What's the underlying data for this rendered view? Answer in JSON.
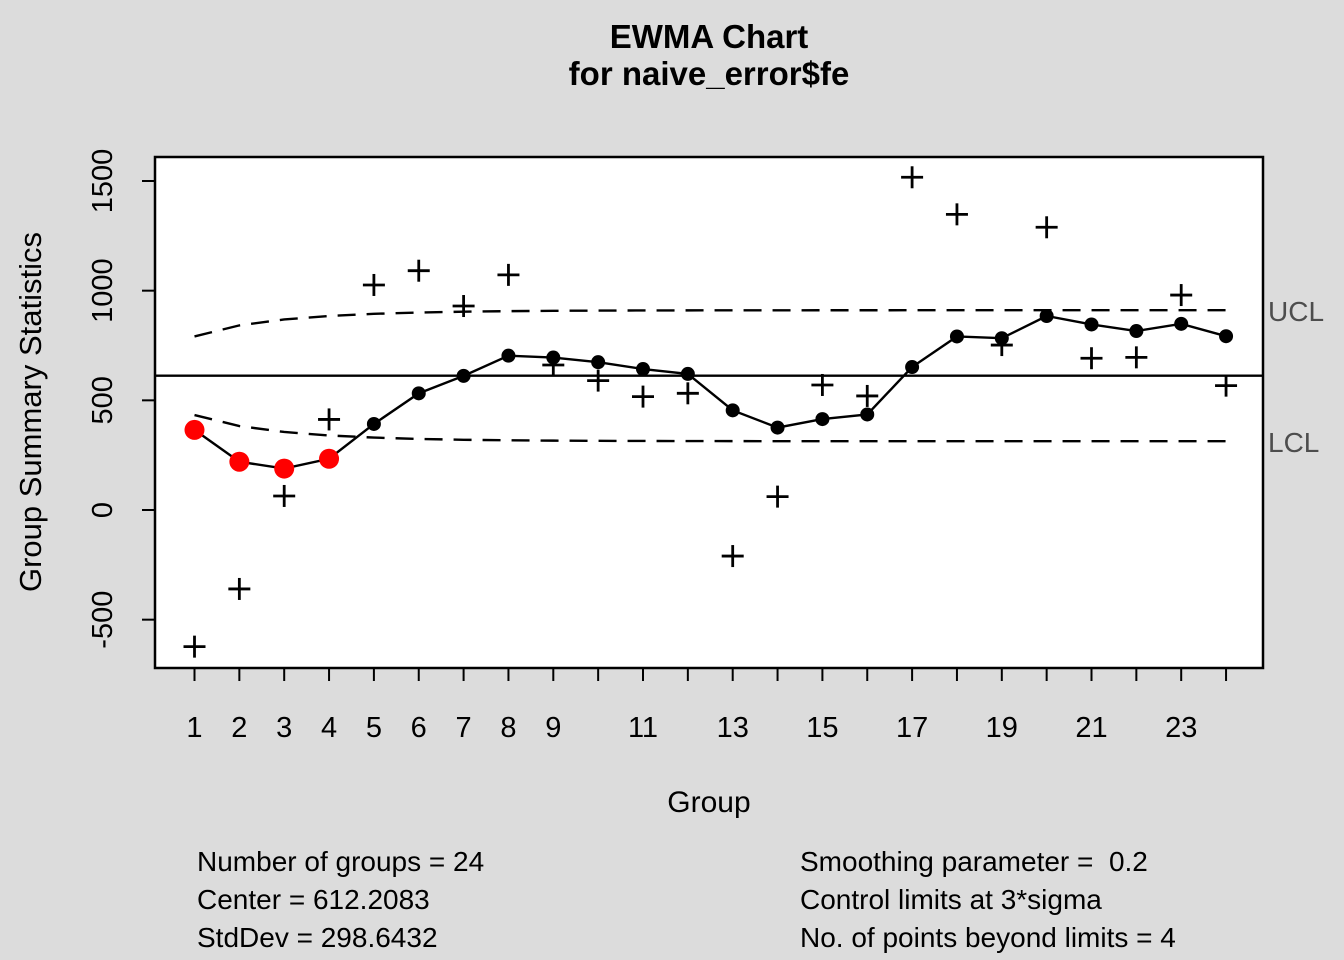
{
  "header": {
    "title": "EWMA Chart",
    "subtitle": "for naive_error$fe"
  },
  "axes": {
    "ylabel": "Group Summary Statistics",
    "xlabel": "Group",
    "y_ticks": [
      -500,
      0,
      500,
      1000,
      1500
    ],
    "x_tick_count": 24,
    "x_tick_labels_shown": [
      1,
      2,
      3,
      4,
      5,
      6,
      7,
      8,
      9,
      11,
      13,
      15,
      17,
      19,
      21,
      23
    ]
  },
  "limit_labels": {
    "ucl": "UCL",
    "lcl": "LCL"
  },
  "stats": {
    "n_groups": "Number of groups = 24",
    "center": "Center = 612.2083",
    "stddev": "StdDev = 298.6432",
    "smoothing": "Smoothing parameter =  0.2",
    "limits": "Control limits at 3*sigma",
    "beyond": "No. of points beyond limits = 4"
  },
  "chart_data": {
    "type": "line",
    "title": "EWMA Chart for naive_error$fe",
    "xlabel": "Group",
    "ylabel": "Group Summary Statistics",
    "x": [
      1,
      2,
      3,
      4,
      5,
      6,
      7,
      8,
      9,
      10,
      11,
      12,
      13,
      14,
      15,
      16,
      17,
      18,
      19,
      20,
      21,
      22,
      23,
      24
    ],
    "ylim": [
      -700,
      1600
    ],
    "grid": false,
    "center": 612.2083,
    "std_dev": 298.6432,
    "smoothing_lambda": 0.2,
    "nsigmas": 3,
    "beyond_limit_groups": [
      1,
      2,
      3,
      4
    ],
    "series": [
      {
        "name": "group summary statistics (plus markers)",
        "marker": "plus",
        "values": [
          -623,
          -360,
          64,
          413,
          1026,
          1091,
          930,
          1072,
          661,
          590,
          517,
          532,
          -210,
          61,
          570,
          520,
          1517,
          1348,
          752,
          1289,
          692,
          696,
          980,
          567
        ]
      },
      {
        "name": "EWMA smoothed (dots + line)",
        "marker": "dot",
        "values": [
          365.2,
          220.1,
          188.9,
          233.7,
          392.2,
          531.9,
          611.6,
          703.7,
          695.1,
          674.1,
          642.7,
          620.5,
          454.4,
          375.8,
          414.6,
          435.7,
          651.9,
          791.2,
          783.3,
          884.5,
          846.0,
          816.0,
          848.8,
          792.4
        ]
      },
      {
        "name": "UCL (dashed)",
        "marker": "none",
        "values": [
          791.4,
          841.7,
          868.7,
          884.7,
          894.4,
          900.4,
          904.2,
          906.6,
          908.2,
          909.1,
          909.8,
          910.2,
          910.4,
          910.6,
          910.7,
          910.7,
          910.8,
          910.8,
          910.8,
          910.8,
          910.8,
          910.8,
          910.8,
          910.8
        ]
      },
      {
        "name": "LCL (dashed)",
        "marker": "none",
        "values": [
          433.0,
          382.7,
          355.7,
          339.8,
          330.1,
          324.0,
          320.2,
          317.8,
          316.3,
          315.3,
          314.7,
          314.3,
          314.0,
          313.9,
          313.8,
          313.7,
          313.6,
          313.6,
          313.6,
          313.6,
          313.6,
          313.6,
          313.6,
          313.6
        ]
      }
    ],
    "colors": {
      "series": "#000000",
      "beyond_limits": "#ff0000",
      "limit_label_text": "#4d4d4d",
      "background": "#dcdcdc",
      "plot_background": "#ffffff"
    }
  }
}
